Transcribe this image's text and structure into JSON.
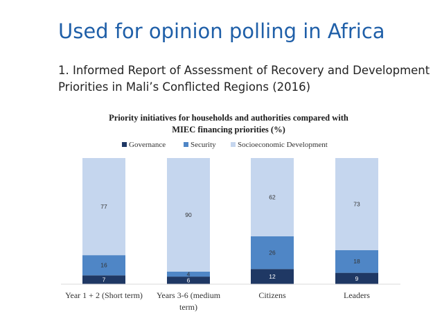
{
  "slide": {
    "title": "Used for opinion polling in Africa",
    "subtitle_line1": "1. Informed Report of Assessment of Recovery and Development",
    "subtitle_line2": "Priorities in Mali’s Conflicted Regions (2016)"
  },
  "colors": {
    "governance": "#1f3864",
    "security": "#4f86c6",
    "socioeconomic": "#c5d6ee"
  },
  "chart_data": {
    "type": "bar",
    "stacked": true,
    "title_line1": "Priority initiatives for households and authorities compared with",
    "title_line2": "MIEC financing priorities (%)",
    "categories": [
      [
        "Year 1 + 2 (Short term)"
      ],
      [
        "Years 3-6 (medium",
        "term)"
      ],
      [
        "Citizens"
      ],
      [
        "Leaders"
      ]
    ],
    "series": [
      {
        "name": "Governance",
        "values": [
          7,
          6,
          12,
          9
        ]
      },
      {
        "name": "Security",
        "values": [
          16,
          4,
          26,
          18
        ]
      },
      {
        "name": "Socioeconomic Development",
        "values": [
          77,
          90,
          62,
          73
        ]
      }
    ],
    "legend_position": "top",
    "ylim": [
      0,
      100
    ],
    "grid": false
  }
}
